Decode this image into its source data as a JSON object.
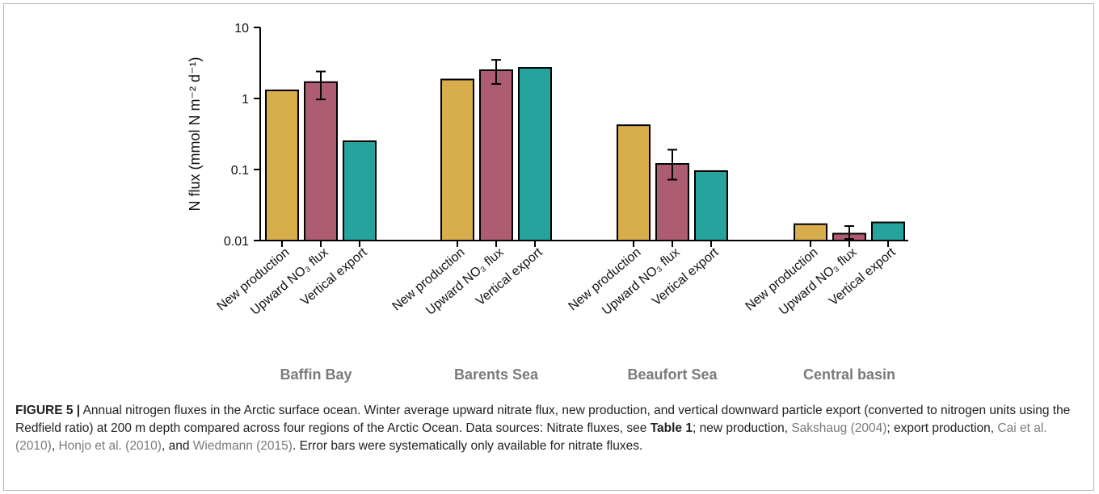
{
  "chart_data": {
    "type": "bar",
    "ylabel": "N flux (mmol N m⁻² d⁻¹)",
    "yscale": "log",
    "ylim": [
      0.01,
      10
    ],
    "yticks": [
      10,
      1,
      0.1,
      0.01
    ],
    "ytick_labels": [
      "10",
      "1",
      "0.1",
      "0.01"
    ],
    "grid": false,
    "legend": "none",
    "bar_categories": [
      "New production",
      "Upward NO3 flux",
      "Vertical export"
    ],
    "bar_labels": [
      "New production",
      "Upward NO₃ flux",
      "Vertical export"
    ],
    "colors": [
      "#d8ad4c",
      "#ad5c72",
      "#27a39e"
    ],
    "groups": [
      {
        "name": "Baffin Bay",
        "values": [
          1.3,
          1.7,
          0.25
        ],
        "error": [
          null,
          [
            0.97,
            2.4
          ],
          null
        ]
      },
      {
        "name": "Barents Sea",
        "values": [
          1.85,
          2.5,
          2.7
        ],
        "error": [
          null,
          [
            1.6,
            3.5
          ],
          null
        ]
      },
      {
        "name": "Beaufort Sea",
        "values": [
          0.42,
          0.12,
          0.095
        ],
        "error": [
          null,
          [
            0.072,
            0.19
          ],
          null
        ]
      },
      {
        "name": "Central basin",
        "values": [
          0.017,
          0.0125,
          0.018
        ],
        "error": [
          null,
          [
            0.0105,
            0.016
          ],
          null
        ]
      }
    ]
  },
  "caption": {
    "lead": "FIGURE 5 |",
    "t1": " Annual nitrogen fluxes in the Arctic surface ocean. Winter average upward nitrate flux, new production, and vertical downward particle export (converted to nitrogen units using the Redfield ratio) at 200 m depth compared across four regions of the Arctic Ocean. Data sources: Nitrate fluxes, see ",
    "table_ref": "Table 1",
    "t2": "; new production, ",
    "ref1": "Sakshaug (2004)",
    "t3": "; export production, ",
    "ref2": "Cai et al. (2010)",
    "t4": ", ",
    "ref3": "Honjo et al. (2010)",
    "t5": ", and ",
    "ref4": "Wiedmann (2015)",
    "t6": ". Error bars were systematically only available for nitrate fluxes."
  }
}
